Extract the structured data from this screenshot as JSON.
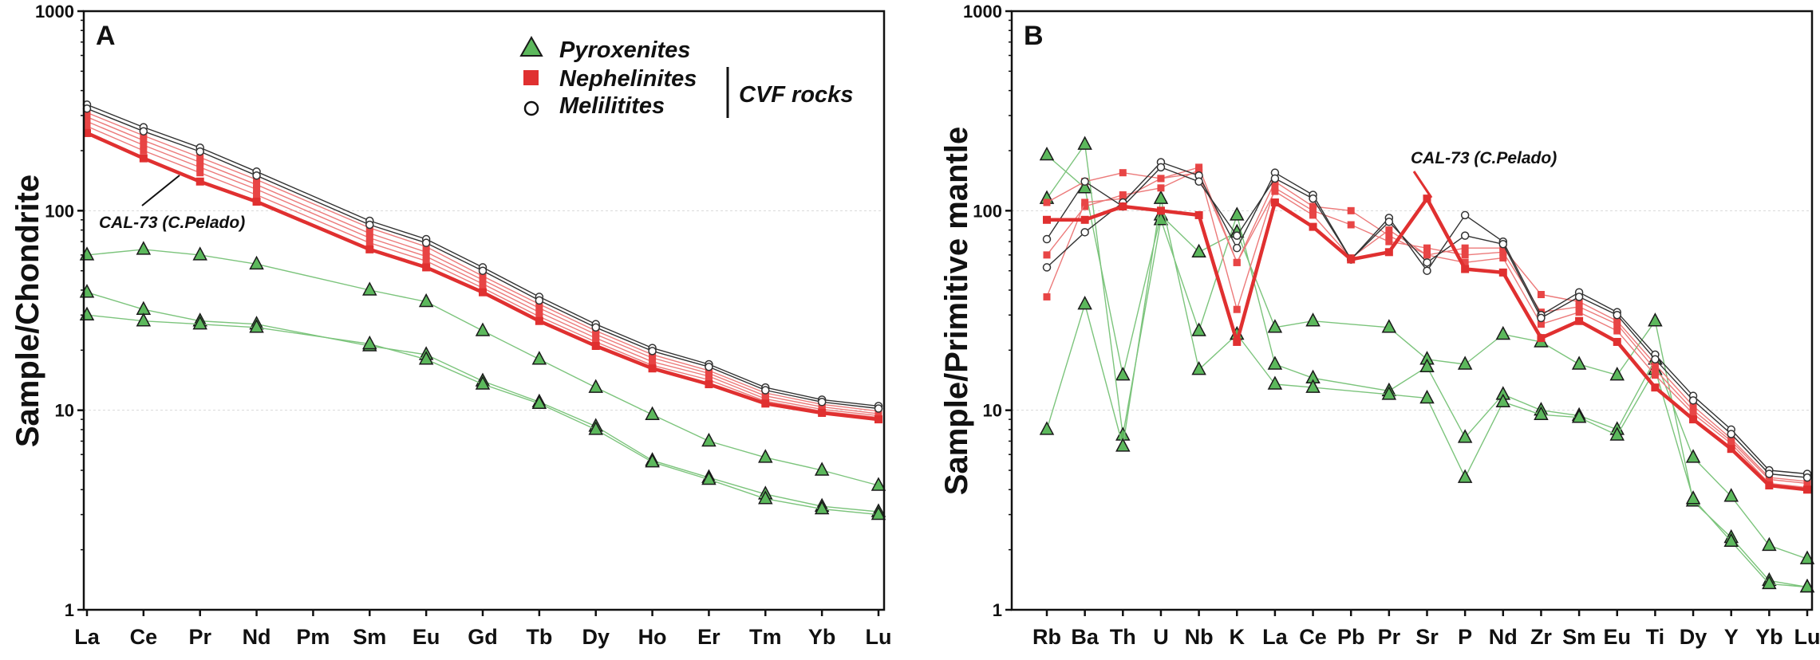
{
  "chart_data": [
    {
      "panel": "A",
      "type": "line",
      "scale": "log",
      "ylabel": "Sample/Chondrite",
      "ylim": [
        1,
        1000
      ],
      "yticks": [
        "1",
        "10",
        "100",
        "1000"
      ],
      "categories": [
        "La",
        "Ce",
        "Pr",
        "Nd",
        "Pm",
        "Sm",
        "Eu",
        "Gd",
        "Tb",
        "Dy",
        "Ho",
        "Er",
        "Tm",
        "Yb",
        "Lu"
      ],
      "legend": {
        "items": [
          {
            "label": "Pyroxenites",
            "marker": "triangle",
            "color": "#5cb85c"
          },
          {
            "label": "Nephelinites",
            "marker": "square",
            "color": "#e03030"
          },
          {
            "label": "Melilitites",
            "marker": "circle",
            "color": "#222222"
          }
        ],
        "group_label": "CVF rocks",
        "position": "top-right"
      },
      "annotation": "CAL-73 (C.Pelado)",
      "series": [
        {
          "name": "Melilitite 1",
          "kind": "melilitite",
          "values": [
            340,
            262,
            207,
            157,
            null,
            89,
            72,
            52,
            37,
            27,
            20.5,
            17,
            13,
            11.3,
            10.5
          ]
        },
        {
          "name": "Melilitite 2",
          "kind": "melilitite",
          "values": [
            325,
            250,
            198,
            150,
            null,
            85,
            69,
            50,
            35.5,
            26,
            19.8,
            16.5,
            12.6,
            11,
            10.2
          ]
        },
        {
          "name": "Nephelinite 1",
          "kind": "nephelinite",
          "values": [
            310,
            238,
            185,
            143,
            null,
            82,
            66,
            47,
            34,
            25,
            19,
            15.8,
            12.2,
            10.7,
            9.9
          ]
        },
        {
          "name": "Nephelinite 2",
          "kind": "nephelinite",
          "values": [
            295,
            225,
            175,
            135,
            null,
            77,
            62,
            45,
            32.5,
            24,
            18.3,
            15.3,
            11.8,
            10.4,
            9.6
          ]
        },
        {
          "name": "Nephelinite 3",
          "kind": "nephelinite",
          "values": [
            280,
            213,
            165,
            128,
            null,
            73,
            59,
            43,
            31,
            23,
            17.5,
            14.8,
            11.4,
            10.1,
            9.4
          ]
        },
        {
          "name": "Nephelinite 4",
          "kind": "nephelinite",
          "values": [
            265,
            200,
            155,
            120,
            null,
            69,
            56,
            41,
            29.5,
            22,
            16.8,
            14.2,
            11.1,
            9.9,
            9.2
          ]
        },
        {
          "name": "CAL-73 (C.Pelado)",
          "kind": "cal73",
          "values": [
            245,
            183,
            140,
            111,
            null,
            64,
            52,
            39,
            28,
            21,
            16.2,
            13.5,
            10.8,
            9.7,
            9
          ]
        },
        {
          "name": "Pyroxenite 1",
          "kind": "pyroxenite",
          "values": [
            60,
            64,
            60,
            54,
            null,
            40,
            35,
            25,
            18,
            13,
            9.5,
            7,
            5.8,
            5,
            4.2
          ]
        },
        {
          "name": "Pyroxenite 2",
          "kind": "pyroxenite",
          "values": [
            39,
            32,
            28,
            27,
            null,
            21,
            19,
            14,
            11,
            8.3,
            5.6,
            4.6,
            3.8,
            3.3,
            3.1
          ]
        },
        {
          "name": "Pyroxenite 3",
          "kind": "pyroxenite",
          "values": [
            30,
            28,
            27,
            26,
            null,
            21.5,
            18,
            13.5,
            10.8,
            8,
            5.5,
            4.5,
            3.6,
            3.2,
            3
          ]
        }
      ]
    },
    {
      "panel": "B",
      "type": "line",
      "scale": "log",
      "ylabel": "Sample/Primitive mantle",
      "ylim": [
        1,
        1000
      ],
      "yticks": [
        "1",
        "10",
        "100",
        "1000"
      ],
      "categories": [
        "Rb",
        "Ba",
        "Th",
        "U",
        "Nb",
        "K",
        "La",
        "Ce",
        "Pb",
        "Pr",
        "Sr",
        "P",
        "Nd",
        "Zr",
        "Sm",
        "Eu",
        "Ti",
        "Dy",
        "Y",
        "Yb",
        "Lu"
      ],
      "annotation": "CAL-73 (C.Pelado)",
      "series": [
        {
          "name": "Melilitite 1",
          "kind": "melilitite",
          "values": [
            52,
            78,
            110,
            175,
            150,
            65,
            155,
            120,
            57,
            92,
            50,
            95,
            70,
            30,
            39,
            31,
            19,
            11.8,
            8,
            5,
            4.8
          ]
        },
        {
          "name": "Melilitite 2",
          "kind": "melilitite",
          "values": [
            72,
            140,
            105,
            165,
            140,
            75,
            145,
            115,
            57,
            88,
            55,
            75,
            68,
            29,
            37,
            30,
            18,
            11.2,
            7.6,
            4.8,
            4.6
          ]
        },
        {
          "name": "Nephelinite 1",
          "kind": "nephelinite",
          "values": [
            110,
            140,
            155,
            145,
            165,
            55,
            140,
            105,
            100,
            75,
            60,
            65,
            65,
            38,
            35,
            28,
            17,
            10.5,
            7.2,
            4.6,
            4.4
          ]
        },
        {
          "name": "Nephelinite 2",
          "kind": "nephelinite",
          "values": [
            60,
            105,
            120,
            130,
            160,
            32,
            130,
            100,
            85,
            70,
            65,
            60,
            62,
            31,
            33,
            27,
            16,
            10,
            7,
            4.5,
            4.3
          ]
        },
        {
          "name": "Nephelinite 3",
          "kind": "nephelinite",
          "values": [
            37,
            110,
            115,
            145,
            155,
            55,
            125,
            95,
            58,
            80,
            60,
            55,
            58,
            27,
            31,
            25,
            15,
            9.6,
            6.8,
            4.3,
            4.1
          ]
        },
        {
          "name": "CAL-73 (C.Pelado)",
          "kind": "cal73",
          "values": [
            90,
            90,
            105,
            100,
            95,
            22,
            110,
            83,
            57,
            62,
            115,
            51,
            49,
            23,
            28,
            22,
            13,
            9,
            6.4,
            4.2,
            4
          ]
        },
        {
          "name": "Pyroxenite 1",
          "kind": "pyroxenite",
          "values": [
            190,
            130,
            15,
            95,
            62,
            78,
            26,
            28,
            null,
            26,
            18,
            17,
            24,
            22,
            17,
            15,
            28,
            3.5,
            2.3,
            1.4,
            1.3
          ]
        },
        {
          "name": "Pyroxenite 2",
          "kind": "pyroxenite",
          "values": [
            115,
            215,
            7.5,
            90,
            25,
            95,
            17,
            14.5,
            null,
            12.5,
            16.5,
            7.3,
            12,
            10,
            9.4,
            8,
            18,
            5.8,
            3.7,
            2.1,
            1.8
          ]
        },
        {
          "name": "Pyroxenite 3",
          "kind": "pyroxenite",
          "values": [
            8,
            34,
            6.6,
            115,
            16,
            24,
            13.5,
            13,
            null,
            12,
            11.5,
            4.6,
            11,
            9.5,
            9.2,
            7.5,
            16,
            3.6,
            2.2,
            1.35,
            1.3
          ]
        }
      ]
    }
  ]
}
